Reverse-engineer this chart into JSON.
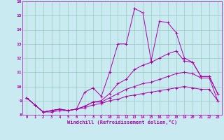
{
  "background_color": "#c8eaf0",
  "line_color": "#aa00aa",
  "grid_color": "#99ccbb",
  "xlabel": "Windchill (Refroidissement éolien,°C)",
  "xlabel_color": "#aa00aa",
  "xlim": [
    -0.5,
    23.5
  ],
  "ylim": [
    8,
    16
  ],
  "yticks": [
    8,
    9,
    10,
    11,
    12,
    13,
    14,
    15,
    16
  ],
  "xticks": [
    0,
    1,
    2,
    3,
    4,
    5,
    6,
    7,
    8,
    9,
    10,
    11,
    12,
    13,
    14,
    15,
    16,
    17,
    18,
    19,
    20,
    21,
    22,
    23
  ],
  "line1_x": [
    0,
    1,
    2,
    3,
    4,
    5,
    6,
    7,
    8,
    9,
    10,
    11,
    12,
    13,
    14,
    15,
    16,
    17,
    18,
    19,
    20,
    21,
    22,
    23
  ],
  "line1_y": [
    9.2,
    8.7,
    8.2,
    8.3,
    8.4,
    8.3,
    8.4,
    9.6,
    9.9,
    9.3,
    11.0,
    13.0,
    13.0,
    15.5,
    15.2,
    11.8,
    14.6,
    14.5,
    13.8,
    12.0,
    11.7,
    10.7,
    10.7,
    9.5
  ],
  "line2_x": [
    0,
    1,
    2,
    3,
    4,
    5,
    6,
    7,
    8,
    9,
    10,
    11,
    12,
    13,
    14,
    15,
    16,
    17,
    18,
    19,
    20,
    21,
    22,
    23
  ],
  "line2_y": [
    9.2,
    8.7,
    8.2,
    8.3,
    8.4,
    8.3,
    8.4,
    8.6,
    8.9,
    9.0,
    9.5,
    10.2,
    10.5,
    11.2,
    11.5,
    11.7,
    12.0,
    12.3,
    12.5,
    11.8,
    11.7,
    10.7,
    10.7,
    9.5
  ],
  "line3_x": [
    0,
    1,
    2,
    3,
    4,
    5,
    6,
    7,
    8,
    9,
    10,
    11,
    12,
    13,
    14,
    15,
    16,
    17,
    18,
    19,
    20,
    21,
    22,
    23
  ],
  "line3_y": [
    9.2,
    8.7,
    8.2,
    8.3,
    8.4,
    8.3,
    8.4,
    8.6,
    8.9,
    8.9,
    9.2,
    9.5,
    9.8,
    10.0,
    10.2,
    10.3,
    10.5,
    10.7,
    10.9,
    11.0,
    10.9,
    10.6,
    10.6,
    9.0
  ],
  "line4_x": [
    0,
    1,
    2,
    3,
    4,
    5,
    6,
    7,
    8,
    9,
    10,
    11,
    12,
    13,
    14,
    15,
    16,
    17,
    18,
    19,
    20,
    21,
    22,
    23
  ],
  "line4_y": [
    9.2,
    8.7,
    8.2,
    8.2,
    8.3,
    8.3,
    8.4,
    8.5,
    8.7,
    8.8,
    9.0,
    9.1,
    9.3,
    9.4,
    9.5,
    9.6,
    9.7,
    9.8,
    9.9,
    10.0,
    9.9,
    9.8,
    9.8,
    9.0
  ]
}
